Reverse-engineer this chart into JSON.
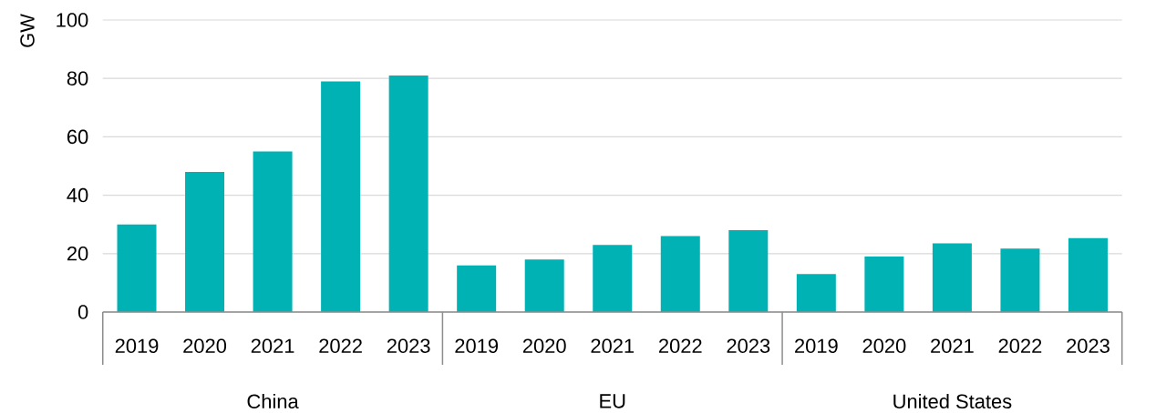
{
  "chart_data": {
    "type": "bar",
    "ylabel": "GW",
    "categories": [
      "2019",
      "2020",
      "2021",
      "2022",
      "2023",
      "2019",
      "2020",
      "2021",
      "2022",
      "2023",
      "2019",
      "2020",
      "2021",
      "2022",
      "2023"
    ],
    "values": [
      30,
      48,
      55,
      79,
      81,
      16,
      18,
      23,
      26,
      28,
      13,
      19,
      23.5,
      21.7,
      25.3
    ],
    "color": "#00b2b4",
    "ylim": [
      0,
      100
    ],
    "yticks": [
      0,
      20,
      40,
      60,
      80,
      100
    ],
    "grid": "y",
    "annotations": [
      "China",
      "EU",
      "United States"
    ]
  }
}
